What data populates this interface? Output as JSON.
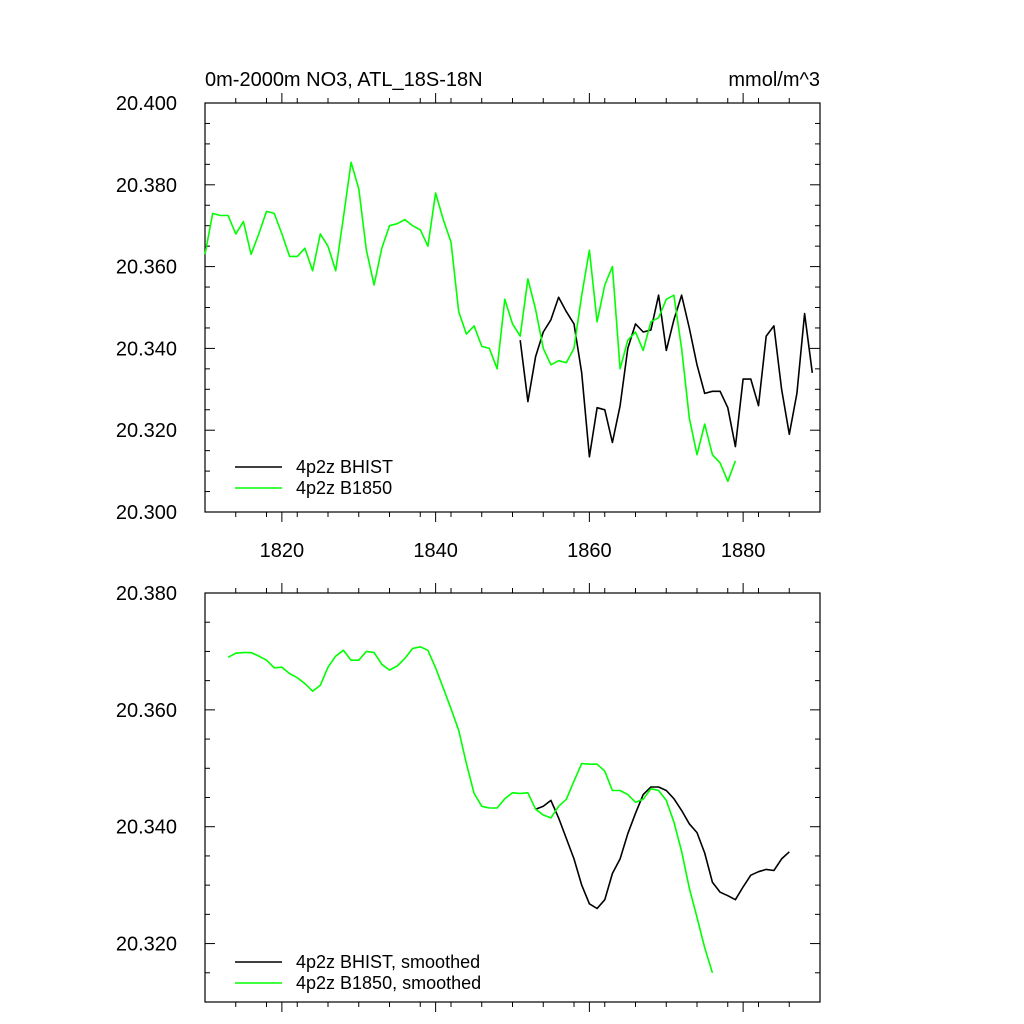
{
  "header": {
    "title": "0m-2000m NO3, ATL_18S-18N",
    "units": "mmol/m^3"
  },
  "colors": {
    "bhist": "#000000",
    "b1850": "#00ff00"
  },
  "chart_data": [
    {
      "type": "line",
      "xlim": [
        1810,
        1890
      ],
      "ylim": [
        20.3,
        20.4
      ],
      "x_ticks": [
        1820,
        1840,
        1860,
        1880
      ],
      "x_tick_labels": [
        "1820",
        "1840",
        "1860",
        "1880"
      ],
      "y_ticks": [
        20.3,
        20.32,
        20.34,
        20.36,
        20.38,
        20.4
      ],
      "y_tick_labels": [
        "20.300",
        "20.320",
        "20.340",
        "20.360",
        "20.380",
        "20.400"
      ],
      "legend_position": "bottom-left",
      "series": [
        {
          "name": "4p2z BHIST",
          "color": "#000000",
          "x": [
            1851,
            1852,
            1853,
            1854,
            1855,
            1856,
            1857,
            1858,
            1859,
            1860,
            1861,
            1862,
            1863,
            1864,
            1865,
            1866,
            1867,
            1868,
            1869,
            1870,
            1871,
            1872,
            1873,
            1874,
            1875,
            1876,
            1877,
            1878,
            1879,
            1880,
            1881,
            1882,
            1883,
            1884,
            1885,
            1886,
            1887,
            1888,
            1889
          ],
          "y": [
            20.342,
            20.327,
            20.338,
            20.344,
            20.347,
            20.3525,
            20.349,
            20.346,
            20.334,
            20.3135,
            20.3255,
            20.325,
            20.317,
            20.326,
            20.34,
            20.346,
            20.344,
            20.3445,
            20.353,
            20.3395,
            20.347,
            20.353,
            20.345,
            20.336,
            20.329,
            20.3295,
            20.3295,
            20.3255,
            20.316,
            20.3325,
            20.3325,
            20.326,
            20.343,
            20.3455,
            20.33,
            20.319,
            20.329,
            20.3485,
            20.334
          ]
        },
        {
          "name": "4p2z B1850",
          "color": "#00ff00",
          "x": [
            1810,
            1811,
            1812,
            1813,
            1814,
            1815,
            1816,
            1817,
            1818,
            1819,
            1820,
            1821,
            1822,
            1823,
            1824,
            1825,
            1826,
            1827,
            1828,
            1829,
            1830,
            1831,
            1832,
            1833,
            1834,
            1835,
            1836,
            1837,
            1838,
            1839,
            1840,
            1841,
            1842,
            1843,
            1844,
            1845,
            1846,
            1847,
            1848,
            1849,
            1850,
            1851,
            1852,
            1853,
            1854,
            1855,
            1856,
            1857,
            1858,
            1859,
            1860,
            1861,
            1862,
            1863,
            1864,
            1865,
            1866,
            1867,
            1868,
            1869,
            1870,
            1871,
            1872,
            1873,
            1874,
            1875,
            1876,
            1877,
            1878,
            1879
          ],
          "y": [
            20.363,
            20.373,
            20.3725,
            20.3725,
            20.368,
            20.371,
            20.363,
            20.368,
            20.3735,
            20.373,
            20.368,
            20.3625,
            20.3625,
            20.3645,
            20.359,
            20.368,
            20.365,
            20.359,
            20.372,
            20.3855,
            20.379,
            20.364,
            20.3555,
            20.3645,
            20.37,
            20.3705,
            20.3715,
            20.37,
            20.369,
            20.365,
            20.378,
            20.3715,
            20.366,
            20.349,
            20.3435,
            20.3455,
            20.3405,
            20.34,
            20.335,
            20.352,
            20.346,
            20.343,
            20.357,
            20.3495,
            20.34,
            20.336,
            20.337,
            20.3365,
            20.34,
            20.353,
            20.364,
            20.3465,
            20.3555,
            20.36,
            20.335,
            20.342,
            20.344,
            20.3395,
            20.3465,
            20.3475,
            20.352,
            20.353,
            20.34,
            20.323,
            20.314,
            20.3215,
            20.314,
            20.312,
            20.3075,
            20.3125
          ]
        }
      ]
    },
    {
      "type": "line",
      "xlim": [
        1810,
        1890
      ],
      "ylim": [
        20.31,
        20.38
      ],
      "x_ticks": [
        1820,
        1840,
        1860,
        1880
      ],
      "y_ticks": [
        20.32,
        20.34,
        20.36,
        20.38
      ],
      "y_tick_labels": [
        "20.320",
        "20.340",
        "20.360",
        "20.380"
      ],
      "legend_position": "bottom-left",
      "series": [
        {
          "name": "4p2z BHIST, smoothed",
          "color": "#000000",
          "x": [
            1853,
            1854,
            1855,
            1856,
            1857,
            1858,
            1859,
            1860,
            1861,
            1862,
            1863,
            1864,
            1865,
            1866,
            1867,
            1868,
            1869,
            1870,
            1871,
            1872,
            1873,
            1874,
            1875,
            1876,
            1877,
            1878,
            1879,
            1880,
            1881,
            1882,
            1883,
            1884,
            1885,
            1886
          ],
          "y": [
            20.343,
            20.3435,
            20.3445,
            20.3415,
            20.338,
            20.3345,
            20.33,
            20.3268,
            20.326,
            20.3275,
            20.332,
            20.3345,
            20.3388,
            20.3423,
            20.3455,
            20.3468,
            20.3468,
            20.3462,
            20.3448,
            20.3428,
            20.3405,
            20.339,
            20.3355,
            20.3305,
            20.3288,
            20.3282,
            20.3275,
            20.3297,
            20.3317,
            20.3323,
            20.3327,
            20.3325,
            20.3345,
            20.3357
          ]
        },
        {
          "name": "4p2z B1850, smoothed",
          "color": "#00ff00",
          "x": [
            1813,
            1814,
            1815,
            1816,
            1817,
            1818,
            1819,
            1820,
            1821,
            1822,
            1823,
            1824,
            1825,
            1826,
            1827,
            1828,
            1829,
            1830,
            1831,
            1832,
            1833,
            1834,
            1835,
            1836,
            1837,
            1838,
            1839,
            1840,
            1841,
            1842,
            1843,
            1844,
            1845,
            1846,
            1847,
            1848,
            1849,
            1850,
            1851,
            1852,
            1853,
            1854,
            1855,
            1856,
            1857,
            1858,
            1859,
            1860,
            1861,
            1862,
            1863,
            1864,
            1865,
            1866,
            1867,
            1868,
            1869,
            1870,
            1871,
            1872,
            1873,
            1874,
            1875,
            1876
          ],
          "y": [
            20.369,
            20.3697,
            20.3698,
            20.3698,
            20.3692,
            20.3685,
            20.3672,
            20.3673,
            20.3662,
            20.3655,
            20.3645,
            20.3632,
            20.3642,
            20.3673,
            20.3692,
            20.3702,
            20.3685,
            20.3685,
            20.37,
            20.3698,
            20.3678,
            20.3668,
            20.3675,
            20.3688,
            20.3705,
            20.3708,
            20.3702,
            20.3672,
            20.3637,
            20.3602,
            20.3565,
            20.3508,
            20.3457,
            20.3435,
            20.3432,
            20.3432,
            20.3448,
            20.3458,
            20.3457,
            20.3458,
            20.343,
            20.342,
            20.3415,
            20.3435,
            20.3447,
            20.3478,
            20.3508,
            20.3507,
            20.3507,
            20.3495,
            20.3462,
            20.3462,
            20.3455,
            20.3442,
            20.3447,
            20.3465,
            20.3462,
            20.3445,
            20.3408,
            20.3358,
            20.3295,
            20.3245,
            20.3193,
            20.315
          ]
        }
      ]
    }
  ]
}
